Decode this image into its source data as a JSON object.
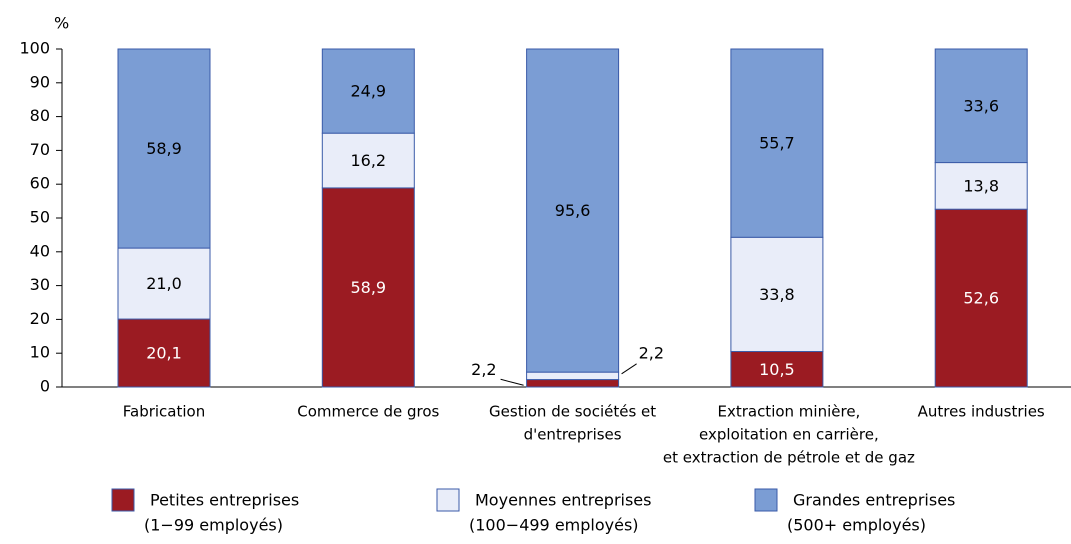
{
  "chart_data": {
    "type": "stacked_bar",
    "y_label": "%",
    "categories": [
      [
        "Fabrication"
      ],
      [
        "Commerce de gros"
      ],
      [
        "Gestion de sociétés et",
        "d'entreprises"
      ],
      [
        "Extraction minière,",
        "exploitation en carrière,",
        "et extraction de pétrole et de gaz"
      ],
      [
        "Autres industries"
      ]
    ],
    "series": [
      {
        "name": [
          "Petites entreprises",
          "(1−99 employés)"
        ],
        "color": "#9b1b22",
        "label_color": "#ffffff",
        "values": [
          20.1,
          58.9,
          2.2,
          10.5,
          52.6
        ],
        "value_labels": [
          "20,1",
          "58,9",
          "2,2",
          "10,5",
          "52,6"
        ]
      },
      {
        "name": [
          "Moyennes entreprises",
          "(100−499 employés)"
        ],
        "color": "#e9edf9",
        "label_color": "#000000",
        "values": [
          21.0,
          16.2,
          2.2,
          33.8,
          13.8
        ],
        "value_labels": [
          "21,0",
          "16,2",
          "2,2",
          "33,8",
          "13,8"
        ]
      },
      {
        "name": [
          "Grandes entreprises",
          "(500+ employés)"
        ],
        "color": "#7b9dd4",
        "label_color": "#000000",
        "values": [
          58.9,
          24.9,
          95.6,
          55.7,
          33.6
        ],
        "value_labels": [
          "58,9",
          "24,9",
          "95,6",
          "55,7",
          "33,6"
        ]
      }
    ],
    "ylim": [
      0,
      100
    ],
    "yticks": [
      0,
      10,
      20,
      30,
      40,
      50,
      60,
      70,
      80,
      90,
      100
    ],
    "grid": false
  }
}
